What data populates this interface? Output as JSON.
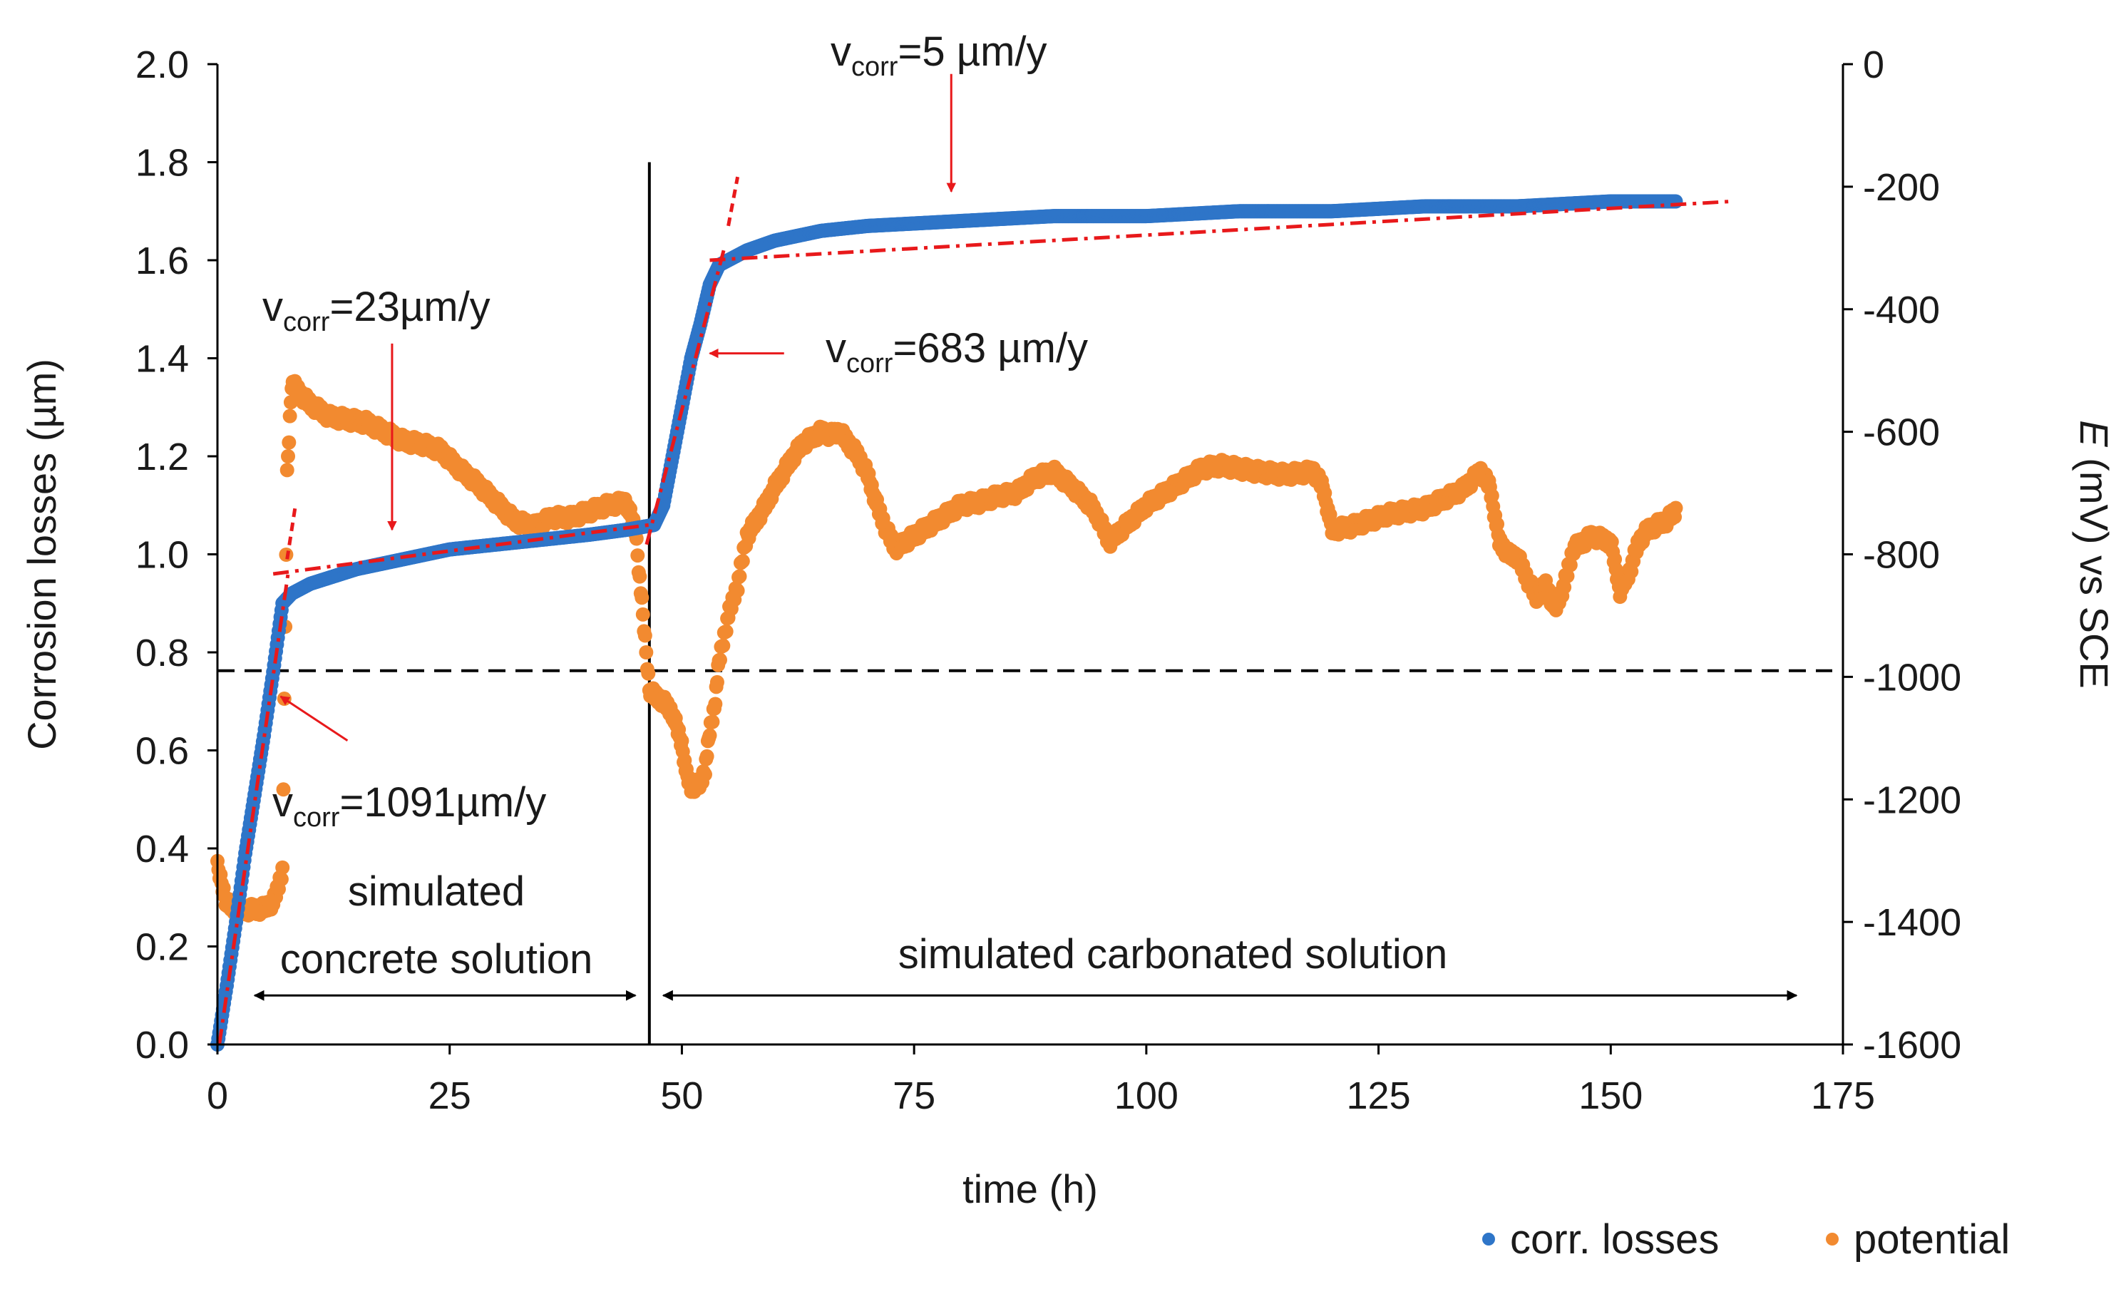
{
  "chart_data": {
    "type": "scatter",
    "xlabel": "time (h)",
    "ylabel": "Corrosion losses (µm)",
    "y2label_italic": "E",
    "y2label_rest": " (mV) vs SCE",
    "xlim": [
      0,
      175
    ],
    "ylim": [
      0,
      2.0
    ],
    "y2lim": [
      -1600,
      0
    ],
    "x_ticks": [
      0,
      25,
      50,
      75,
      100,
      125,
      150,
      175
    ],
    "x_tick_labels": [
      "0",
      "25",
      "50",
      "75",
      "100",
      "125",
      "150",
      "175"
    ],
    "y_ticks": [
      0,
      0.2,
      0.4,
      0.6,
      0.8,
      1.0,
      1.2,
      1.4,
      1.6,
      1.8,
      2.0
    ],
    "y_tick_labels": [
      "0.0",
      "0.2",
      "0.4",
      "0.6",
      "0.8",
      "1.0",
      "1.2",
      "1.4",
      "1.6",
      "1.8",
      "2.0"
    ],
    "y2_ticks": [
      -1600,
      -1400,
      -1200,
      -1000,
      -800,
      -600,
      -400,
      -200,
      0
    ],
    "y2_tick_labels": [
      "-1600",
      "-1400",
      "-1200",
      "-1000",
      "-800",
      "-600",
      "-400",
      "-200",
      "0"
    ],
    "colors": {
      "losses": "#2e75c8",
      "potential": "#f28a30",
      "fit": "#e8191b",
      "arrow": "#e8191b"
    },
    "legend": {
      "position": "bottom-right",
      "entries": [
        "corr. losses",
        "potential"
      ]
    },
    "series": [
      {
        "name": "corr. losses",
        "axis": "left",
        "points": [
          [
            0,
            0
          ],
          [
            1,
            0.12
          ],
          [
            2,
            0.25
          ],
          [
            3,
            0.39
          ],
          [
            4,
            0.51
          ],
          [
            5,
            0.63
          ],
          [
            6,
            0.76
          ],
          [
            7,
            0.9
          ],
          [
            8,
            0.92
          ],
          [
            10,
            0.94
          ],
          [
            15,
            0.97
          ],
          [
            20,
            0.99
          ],
          [
            25,
            1.01
          ],
          [
            30,
            1.02
          ],
          [
            35,
            1.03
          ],
          [
            40,
            1.04
          ],
          [
            44,
            1.05
          ],
          [
            47,
            1.06
          ],
          [
            48,
            1.1
          ],
          [
            49,
            1.2
          ],
          [
            50,
            1.3
          ],
          [
            51,
            1.4
          ],
          [
            52,
            1.47
          ],
          [
            53,
            1.55
          ],
          [
            54,
            1.59
          ],
          [
            55,
            1.6
          ],
          [
            57,
            1.62
          ],
          [
            60,
            1.64
          ],
          [
            65,
            1.66
          ],
          [
            70,
            1.67
          ],
          [
            80,
            1.68
          ],
          [
            90,
            1.69
          ],
          [
            100,
            1.69
          ],
          [
            110,
            1.7
          ],
          [
            120,
            1.7
          ],
          [
            130,
            1.71
          ],
          [
            140,
            1.71
          ],
          [
            150,
            1.72
          ],
          [
            157,
            1.72
          ]
        ]
      },
      {
        "name": "potential",
        "axis": "right",
        "points": [
          [
            0,
            -1310
          ],
          [
            1,
            -1370
          ],
          [
            2,
            -1380
          ],
          [
            3,
            -1380
          ],
          [
            4,
            -1380
          ],
          [
            5,
            -1378
          ],
          [
            6,
            -1368
          ],
          [
            6.5,
            -1345
          ],
          [
            7,
            -1315
          ],
          [
            7.2,
            -1045
          ],
          [
            7.5,
            -670
          ],
          [
            8,
            -520
          ],
          [
            9,
            -540
          ],
          [
            10,
            -555
          ],
          [
            12,
            -575
          ],
          [
            14,
            -580
          ],
          [
            16,
            -585
          ],
          [
            18,
            -600
          ],
          [
            20,
            -615
          ],
          [
            22,
            -620
          ],
          [
            24,
            -630
          ],
          [
            26,
            -660
          ],
          [
            28,
            -685
          ],
          [
            30,
            -715
          ],
          [
            32,
            -745
          ],
          [
            34,
            -755
          ],
          [
            36,
            -740
          ],
          [
            38,
            -740
          ],
          [
            40,
            -730
          ],
          [
            42,
            -720
          ],
          [
            44,
            -715
          ],
          [
            45,
            -760
          ],
          [
            46.5,
            -1020
          ],
          [
            47,
            -1030
          ],
          [
            48,
            -1040
          ],
          [
            49,
            -1060
          ],
          [
            50,
            -1110
          ],
          [
            50.5,
            -1160
          ],
          [
            51,
            -1180
          ],
          [
            52,
            -1175
          ],
          [
            52.5,
            -1150
          ],
          [
            53,
            -1090
          ],
          [
            53.5,
            -1050
          ],
          [
            54,
            -975
          ],
          [
            55,
            -900
          ],
          [
            56,
            -850
          ],
          [
            57,
            -770
          ],
          [
            58,
            -745
          ],
          [
            59,
            -720
          ],
          [
            60,
            -690
          ],
          [
            61,
            -665
          ],
          [
            62,
            -640
          ],
          [
            63,
            -620
          ],
          [
            64,
            -610
          ],
          [
            65,
            -600
          ],
          [
            66,
            -605
          ],
          [
            67,
            -600
          ],
          [
            68,
            -620
          ],
          [
            69,
            -640
          ],
          [
            70,
            -670
          ],
          [
            71,
            -720
          ],
          [
            72,
            -760
          ],
          [
            73,
            -790
          ],
          [
            74,
            -780
          ],
          [
            75,
            -770
          ],
          [
            76,
            -760
          ],
          [
            78,
            -740
          ],
          [
            80,
            -720
          ],
          [
            82,
            -715
          ],
          [
            84,
            -705
          ],
          [
            86,
            -700
          ],
          [
            88,
            -675
          ],
          [
            90,
            -665
          ],
          [
            92,
            -690
          ],
          [
            94,
            -720
          ],
          [
            95,
            -745
          ],
          [
            96,
            -780
          ],
          [
            98,
            -750
          ],
          [
            100,
            -720
          ],
          [
            102,
            -700
          ],
          [
            104,
            -680
          ],
          [
            106,
            -660
          ],
          [
            108,
            -655
          ],
          [
            110,
            -660
          ],
          [
            112,
            -665
          ],
          [
            115,
            -670
          ],
          [
            118,
            -665
          ],
          [
            119,
            -690
          ],
          [
            120,
            -760
          ],
          [
            122,
            -755
          ],
          [
            124,
            -745
          ],
          [
            126,
            -735
          ],
          [
            128,
            -730
          ],
          [
            130,
            -725
          ],
          [
            132,
            -710
          ],
          [
            134,
            -695
          ],
          [
            136,
            -665
          ],
          [
            137,
            -690
          ],
          [
            138,
            -780
          ],
          [
            139,
            -800
          ],
          [
            140,
            -805
          ],
          [
            141,
            -840
          ],
          [
            142,
            -870
          ],
          [
            143,
            -850
          ],
          [
            144,
            -890
          ],
          [
            145,
            -850
          ],
          [
            146,
            -790
          ],
          [
            147,
            -780
          ],
          [
            148,
            -770
          ],
          [
            150,
            -780
          ],
          [
            151,
            -860
          ],
          [
            152,
            -830
          ],
          [
            153,
            -780
          ],
          [
            154,
            -760
          ],
          [
            156,
            -745
          ],
          [
            157,
            -730
          ]
        ]
      }
    ],
    "fit_segments": [
      {
        "name": "fit 1091",
        "points": [
          [
            0.2,
            0
          ],
          [
            7.6,
            0.96
          ]
        ]
      },
      {
        "name": "fit 23",
        "points": [
          [
            6,
            0.96
          ],
          [
            46.5,
            1.06
          ]
        ]
      },
      {
        "name": "fit 683",
        "points": [
          [
            46.2,
            1.02
          ],
          [
            54.5,
            1.62
          ]
        ]
      },
      {
        "name": "fit 5",
        "points": [
          [
            53,
            1.6
          ],
          [
            163,
            1.72
          ]
        ]
      }
    ],
    "fit_tick_marks": [
      {
        "points": [
          [
            7.5,
            0.99
          ],
          [
            8.4,
            1.1
          ]
        ]
      },
      {
        "points": [
          [
            55,
            1.67
          ],
          [
            56,
            1.77
          ]
        ]
      }
    ],
    "reference_line": {
      "axis": "right",
      "value": -990,
      "style": "dashed"
    },
    "divider_x": 46.5,
    "annotations": [
      {
        "id": "v1091",
        "prefix": "v",
        "sub": "corr",
        "value": "=1091µm/y",
        "arrow_from": [
          14.0,
          0.62
        ],
        "arrow_to": [
          6.8,
          0.71
        ]
      },
      {
        "id": "v23",
        "prefix": "v",
        "sub": "corr",
        "value": "=23µm/y",
        "arrow_from": [
          18.8,
          1.43
        ],
        "arrow_to": [
          18.8,
          1.05
        ]
      },
      {
        "id": "v683",
        "prefix": "v",
        "sub": "corr",
        "value": "=683 µm/y",
        "arrow_from": [
          61,
          1.41
        ],
        "arrow_to": [
          53,
          1.41
        ]
      },
      {
        "id": "v5",
        "prefix": "v",
        "sub": "corr",
        "value": "=5 µm/y",
        "arrow_from": [
          79,
          1.98
        ],
        "arrow_to": [
          79,
          1.74
        ]
      }
    ],
    "regions": [
      {
        "line1": "simulated",
        "line2": "concrete solution",
        "arrow": [
          4,
          45
        ]
      },
      {
        "line1": "simulated carbonated solution",
        "line2": "",
        "arrow": [
          48,
          170
        ]
      }
    ]
  }
}
